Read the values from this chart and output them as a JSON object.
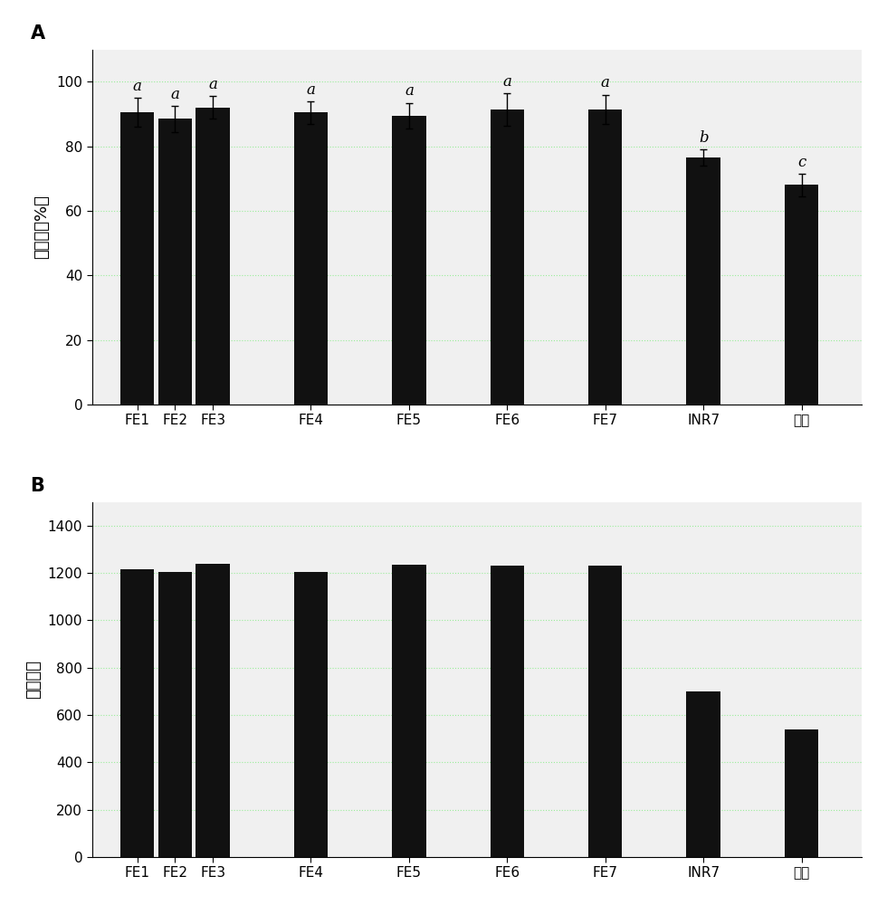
{
  "panel_A": {
    "categories": [
      "FE1",
      "FE2",
      "FE3",
      "FE4",
      "FE5",
      "FE6",
      "FE7",
      "INR7",
      "对照"
    ],
    "values": [
      90.5,
      88.5,
      92.0,
      90.5,
      89.5,
      91.5,
      91.5,
      76.5,
      68.0
    ],
    "errors": [
      4.5,
      4.0,
      3.5,
      3.5,
      4.0,
      5.0,
      4.5,
      2.5,
      3.5
    ],
    "sig_labels": [
      "a",
      "a",
      "a",
      "a",
      "a",
      "a",
      "a",
      "b",
      "c"
    ],
    "ylabel": "发芽率（%）",
    "panel_label": "A",
    "ylim": [
      0,
      110
    ],
    "yticks": [
      0,
      20,
      40,
      60,
      80,
      100
    ],
    "bar_color": "#111111",
    "bar_width": 0.45
  },
  "panel_B": {
    "categories": [
      "FE1",
      "FE2",
      "FE3",
      "FE4",
      "FE5",
      "FE6",
      "FE7",
      "INR7",
      "对照"
    ],
    "values": [
      1215,
      1205,
      1240,
      1205,
      1235,
      1230,
      1230,
      700,
      540
    ],
    "ylabel": "活力指数",
    "panel_label": "B",
    "ylim": [
      0,
      1500
    ],
    "yticks": [
      0,
      200,
      400,
      600,
      800,
      1000,
      1200,
      1400
    ],
    "bar_color": "#111111",
    "bar_width": 0.45
  },
  "positions": [
    0.5,
    1.0,
    1.5,
    2.8,
    4.1,
    5.4,
    6.7,
    8.0,
    9.3
  ],
  "xlim": [
    -0.1,
    10.1
  ],
  "grid_color": "#90ee90",
  "grid_style": ":",
  "grid_alpha": 0.9,
  "bg_color": "#f0f0f0",
  "font_size_tick": 11,
  "font_size_ylabel": 13,
  "font_size_panel": 15,
  "font_size_sig": 12
}
